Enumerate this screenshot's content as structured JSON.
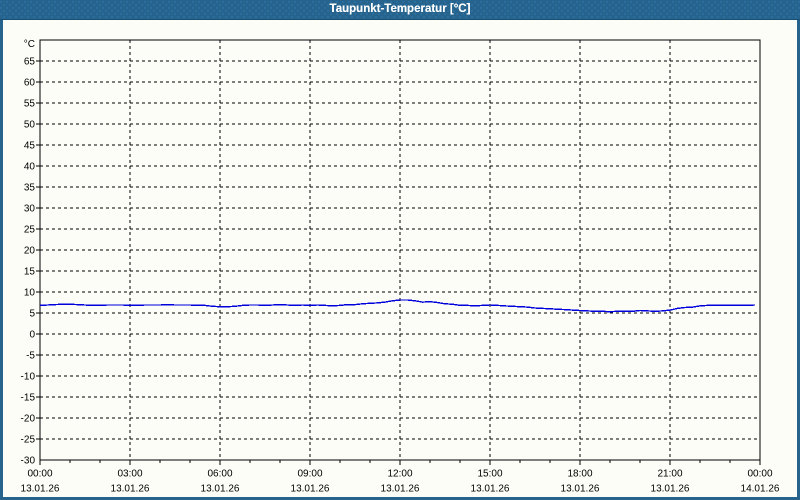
{
  "window": {
    "title": "Taupunkt-Temperatur [°C]"
  },
  "colors": {
    "titlebar_bg": "#26648e",
    "titlebar_text": "#ffffff",
    "window_border": "#26648e",
    "content_bg": "#fdfdf8",
    "axis": "#000000",
    "grid": "#000000",
    "tick_label": "#000000",
    "series_line": "#0000dd"
  },
  "chart_data": {
    "type": "line",
    "title": "Taupunkt-Temperatur [°C]",
    "ylabel": "°C",
    "xlabel": "",
    "ylim": [
      -30,
      70
    ],
    "ytick_step": 5,
    "ytick_values": [
      65,
      60,
      55,
      50,
      45,
      40,
      35,
      30,
      25,
      20,
      15,
      10,
      5,
      0,
      -5,
      -10,
      -15,
      -20,
      -25,
      -30
    ],
    "ygrid_values": [
      65,
      60,
      55,
      50,
      45,
      40,
      35,
      30,
      25,
      20,
      15,
      10,
      5,
      0,
      -5,
      -10,
      -15,
      -20,
      -25
    ],
    "xlim_hours": [
      0,
      24
    ],
    "x_major_tick_hours": [
      0,
      3,
      6,
      9,
      12,
      15,
      18,
      21,
      24
    ],
    "x_minor_tick_step_hours": 1,
    "x_grid_hours": [
      3,
      6,
      9,
      12,
      15,
      18,
      21
    ],
    "x_tick_time_labels": [
      "00:00",
      "03:00",
      "06:00",
      "09:00",
      "12:00",
      "15:00",
      "18:00",
      "21:00",
      "00:00"
    ],
    "x_tick_date_labels": [
      "13.01.26",
      "13.01.26",
      "13.01.26",
      "13.01.26",
      "13.01.26",
      "13.01.26",
      "13.01.26",
      "13.01.26",
      "14.01.26"
    ],
    "grid_style": "dashed",
    "legend": "none",
    "series": [
      {
        "name": "Taupunkt-Temperatur",
        "color": "#0000dd",
        "points_hour_degC": [
          [
            0.0,
            6.8
          ],
          [
            0.25,
            6.9
          ],
          [
            0.5,
            7.0
          ],
          [
            0.75,
            7.1
          ],
          [
            1.0,
            7.1
          ],
          [
            1.25,
            7.0
          ],
          [
            1.5,
            6.9
          ],
          [
            1.75,
            6.8
          ],
          [
            2.0,
            6.8
          ],
          [
            2.25,
            6.9
          ],
          [
            2.5,
            6.9
          ],
          [
            2.75,
            6.9
          ],
          [
            3.0,
            6.8
          ],
          [
            3.25,
            6.8
          ],
          [
            3.5,
            6.9
          ],
          [
            3.75,
            6.9
          ],
          [
            4.0,
            6.9
          ],
          [
            4.25,
            7.0
          ],
          [
            4.5,
            6.9
          ],
          [
            4.75,
            6.9
          ],
          [
            5.0,
            6.9
          ],
          [
            5.25,
            6.8
          ],
          [
            5.5,
            6.8
          ],
          [
            5.75,
            6.6
          ],
          [
            6.0,
            6.5
          ],
          [
            6.25,
            6.5
          ],
          [
            6.5,
            6.6
          ],
          [
            6.75,
            6.8
          ],
          [
            7.0,
            6.9
          ],
          [
            7.25,
            6.9
          ],
          [
            7.5,
            6.8
          ],
          [
            7.75,
            6.9
          ],
          [
            8.0,
            7.0
          ],
          [
            8.25,
            6.9
          ],
          [
            8.5,
            6.8
          ],
          [
            8.75,
            6.9
          ],
          [
            9.0,
            6.8
          ],
          [
            9.25,
            6.9
          ],
          [
            9.5,
            6.8
          ],
          [
            9.75,
            6.7
          ],
          [
            10.0,
            6.8
          ],
          [
            10.25,
            7.0
          ],
          [
            10.5,
            7.0
          ],
          [
            10.75,
            7.2
          ],
          [
            11.0,
            7.3
          ],
          [
            11.25,
            7.4
          ],
          [
            11.5,
            7.6
          ],
          [
            11.75,
            7.9
          ],
          [
            12.0,
            8.1
          ],
          [
            12.25,
            8.1
          ],
          [
            12.5,
            7.9
          ],
          [
            12.75,
            7.6
          ],
          [
            13.0,
            7.7
          ],
          [
            13.25,
            7.5
          ],
          [
            13.5,
            7.2
          ],
          [
            13.75,
            7.1
          ],
          [
            14.0,
            6.8
          ],
          [
            14.25,
            6.8
          ],
          [
            14.5,
            6.7
          ],
          [
            14.75,
            6.8
          ],
          [
            15.0,
            6.9
          ],
          [
            15.25,
            6.8
          ],
          [
            15.5,
            6.7
          ],
          [
            15.75,
            6.6
          ],
          [
            16.0,
            6.5
          ],
          [
            16.25,
            6.4
          ],
          [
            16.5,
            6.2
          ],
          [
            16.75,
            6.1
          ],
          [
            17.0,
            6.0
          ],
          [
            17.25,
            5.9
          ],
          [
            17.5,
            5.8
          ],
          [
            17.75,
            5.7
          ],
          [
            18.0,
            5.6
          ],
          [
            18.25,
            5.5
          ],
          [
            18.5,
            5.4
          ],
          [
            18.75,
            5.4
          ],
          [
            19.0,
            5.3
          ],
          [
            19.25,
            5.4
          ],
          [
            19.5,
            5.4
          ],
          [
            19.75,
            5.4
          ],
          [
            20.0,
            5.6
          ],
          [
            20.25,
            5.5
          ],
          [
            20.5,
            5.4
          ],
          [
            20.75,
            5.5
          ],
          [
            21.0,
            5.7
          ],
          [
            21.25,
            6.1
          ],
          [
            21.5,
            6.3
          ],
          [
            21.75,
            6.4
          ],
          [
            22.0,
            6.7
          ],
          [
            22.25,
            6.8
          ],
          [
            22.5,
            6.8
          ],
          [
            22.75,
            6.8
          ],
          [
            23.0,
            6.8
          ],
          [
            23.25,
            6.8
          ],
          [
            23.5,
            6.8
          ],
          [
            23.83,
            6.9
          ]
        ]
      }
    ]
  }
}
